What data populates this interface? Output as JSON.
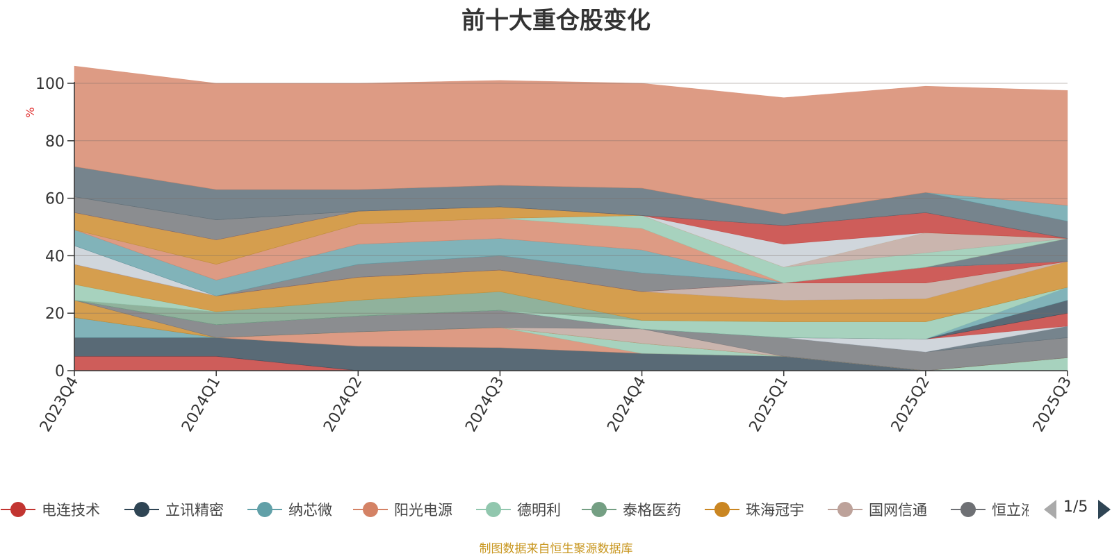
{
  "title": "前十大重仓股变化",
  "ylabel": "%",
  "footnote": "制图数据来自恒生聚源数据库",
  "pager": {
    "text": "1/5"
  },
  "chart_data": {
    "type": "area",
    "stacked": true,
    "title": "前十大重仓股变化",
    "ylabel": "%",
    "ylim": [
      0,
      100
    ],
    "yticks": [
      0,
      20,
      40,
      60,
      80,
      100
    ],
    "grid": true,
    "legend_position": "bottom",
    "categories": [
      "2023Q4",
      "2024Q1",
      "2024Q2",
      "2024Q3",
      "2024Q4",
      "2025Q1",
      "2025Q2",
      "2025Q3"
    ],
    "series": [
      {
        "name": "电连技术",
        "color": "#c23531",
        "values": [
          5,
          5,
          0,
          0,
          0,
          0,
          0,
          0
        ]
      },
      {
        "name": "立讯精密",
        "color": "#2f4554",
        "values": [
          6.5,
          6.5,
          8.5,
          8,
          6,
          5,
          0,
          0
        ]
      },
      {
        "name": "纳芯微",
        "color": "#61a0a8",
        "values": [
          7,
          0,
          0,
          0,
          0,
          0,
          0,
          0
        ]
      },
      {
        "name": "阳光电源",
        "color": "#d48265",
        "values": [
          0,
          0,
          5,
          7,
          0,
          0,
          0,
          0
        ]
      },
      {
        "name": "德明利",
        "color": "#91c7ae",
        "values": [
          0,
          0,
          0,
          0,
          3.5,
          0,
          0,
          4.5
        ]
      },
      {
        "name": "泰格医药",
        "color": "#749f83",
        "values": [
          0,
          0,
          0,
          0,
          0,
          0,
          0,
          0
        ]
      },
      {
        "name": "珠海冠宇",
        "color": "#ca8622",
        "values": [
          6,
          0,
          0,
          0,
          0,
          0,
          0,
          0
        ]
      },
      {
        "name": "国网信通",
        "color": "#bda29a",
        "values": [
          0,
          0,
          0,
          0,
          5,
          0,
          0,
          0
        ]
      },
      {
        "name": "恒立液压",
        "color": "#6e7074",
        "values": [
          0,
          4.5,
          5.5,
          6,
          0,
          6.5,
          6.5,
          7
        ]
      },
      {
        "name": "",
        "color": "#546570",
        "values": [
          0,
          0,
          0,
          0,
          0,
          0,
          0,
          4
        ]
      },
      {
        "name": "",
        "color": "#c4ccd3",
        "values": [
          0,
          0,
          0,
          0,
          0,
          0,
          4.5,
          0
        ]
      },
      {
        "name": "",
        "color": "#c23531",
        "values": [
          0,
          0,
          0,
          0,
          0,
          0,
          0,
          4.5
        ]
      },
      {
        "name": "",
        "color": "#2f4554",
        "values": [
          0,
          0,
          0,
          0,
          0,
          0,
          0,
          4.5
        ]
      },
      {
        "name": "",
        "color": "#61a0a8",
        "values": [
          0,
          0,
          0,
          0,
          0,
          0,
          0,
          4.5
        ]
      },
      {
        "name": "",
        "color": "#91c7ae",
        "values": [
          0,
          0,
          0,
          0,
          3,
          5.5,
          6,
          0
        ]
      },
      {
        "name": "",
        "color": "#749f83",
        "values": [
          0,
          4.5,
          5.5,
          6.5,
          0,
          0,
          0,
          0
        ]
      },
      {
        "name": "",
        "color": "#91c7ae",
        "values": [
          5.5,
          0,
          0,
          0,
          0,
          0,
          0,
          0
        ]
      },
      {
        "name": "",
        "color": "#ca8622",
        "values": [
          7,
          5.5,
          8,
          7.5,
          10,
          7.5,
          8,
          9
        ]
      },
      {
        "name": "",
        "color": "#bda29a",
        "values": [
          0,
          0,
          0,
          0,
          0,
          6,
          5.5,
          0
        ]
      },
      {
        "name": "",
        "color": "#c23531",
        "values": [
          0,
          0,
          0,
          0,
          0,
          0,
          5.5,
          0
        ]
      },
      {
        "name": "",
        "color": "#6e7074",
        "values": [
          0,
          0,
          4.5,
          5,
          6.5,
          0,
          0,
          0
        ]
      },
      {
        "name": "",
        "color": "#c4ccd3",
        "values": [
          6.5,
          0,
          0,
          0,
          0,
          0,
          0,
          0
        ]
      },
      {
        "name": "",
        "color": "#546570",
        "values": [
          0,
          0,
          0,
          0,
          0,
          0,
          0,
          8
        ]
      },
      {
        "name": "",
        "color": "#61a0a8",
        "values": [
          5.5,
          5.5,
          7,
          6,
          8,
          0,
          0,
          0
        ]
      },
      {
        "name": "",
        "color": "#d48265",
        "values": [
          0,
          5.5,
          7,
          7,
          7.5,
          0,
          0,
          0
        ]
      },
      {
        "name": "",
        "color": "#91c7ae",
        "values": [
          0,
          0,
          0,
          0,
          4.5,
          5.5,
          5,
          0
        ]
      },
      {
        "name": "",
        "color": "#bda29a",
        "values": [
          0,
          0,
          0,
          0,
          0,
          0,
          7,
          0
        ]
      },
      {
        "name": "",
        "color": "#ca8622",
        "values": [
          6,
          8.5,
          4.5,
          4,
          0,
          0,
          0,
          0
        ]
      },
      {
        "name": "",
        "color": "#c4ccd3",
        "values": [
          0,
          0,
          0,
          0,
          0,
          8,
          0,
          0
        ]
      },
      {
        "name": "",
        "color": "#c23531",
        "values": [
          0,
          0,
          0,
          0,
          0,
          6.5,
          7,
          0
        ]
      },
      {
        "name": "",
        "color": "#6e7074",
        "values": [
          5.5,
          7,
          0,
          0,
          0,
          0,
          0,
          0
        ]
      },
      {
        "name": "",
        "color": "#546570",
        "values": [
          10.5,
          10.5,
          7.5,
          7.5,
          9.5,
          4,
          7,
          6
        ]
      },
      {
        "name": "",
        "color": "#61a0a8",
        "values": [
          0,
          0,
          0,
          0,
          0,
          0,
          0,
          5.5
        ]
      },
      {
        "name": "",
        "color": "#d48265",
        "values": [
          35,
          37,
          37,
          36.5,
          36.5,
          40.5,
          37,
          40
        ]
      }
    ]
  },
  "legend": [
    {
      "name": "电连技术",
      "color": "#c23531"
    },
    {
      "name": "立讯精密",
      "color": "#2f4554"
    },
    {
      "name": "纳芯微",
      "color": "#61a0a8"
    },
    {
      "name": "阳光电源",
      "color": "#d48265"
    },
    {
      "name": "德明利",
      "color": "#91c7ae"
    },
    {
      "name": "泰格医药",
      "color": "#749f83"
    },
    {
      "name": "珠海冠宇",
      "color": "#ca8622"
    },
    {
      "name": "国网信通",
      "color": "#bda29a"
    },
    {
      "name": "恒立液压",
      "color": "#6e7074"
    }
  ]
}
